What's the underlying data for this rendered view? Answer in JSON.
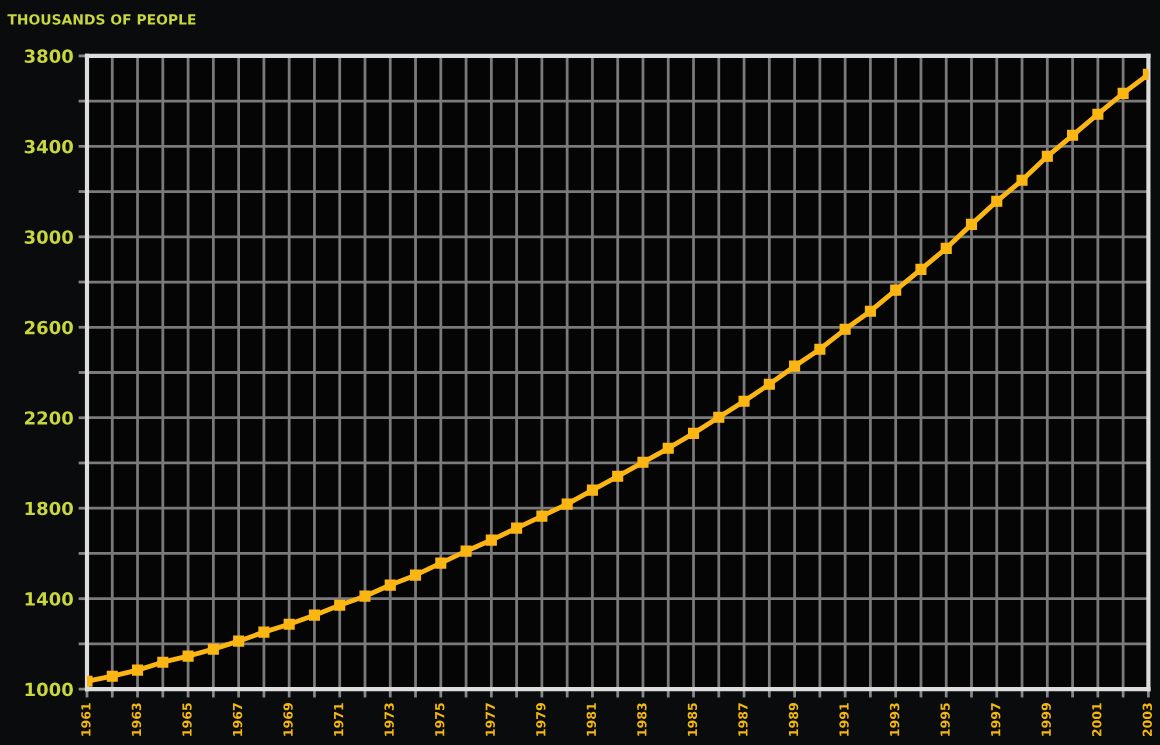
{
  "chart_data": {
    "type": "line",
    "ylabel": "THOUSANDS OF PEOPLE",
    "x": [
      1961,
      1962,
      1963,
      1964,
      1965,
      1966,
      1967,
      1968,
      1969,
      1970,
      1971,
      1972,
      1973,
      1974,
      1975,
      1976,
      1977,
      1978,
      1979,
      1980,
      1981,
      1982,
      1983,
      1984,
      1985,
      1986,
      1987,
      1988,
      1989,
      1990,
      1991,
      1992,
      1993,
      1994,
      1995,
      1996,
      1997,
      1998,
      1999,
      2000,
      2001,
      2002,
      2003
    ],
    "series": [
      {
        "color": "#fbb614",
        "values": [
          1035,
          1057,
          1084,
          1119,
          1146,
          1177,
          1212,
          1252,
          1287,
          1327,
          1371,
          1411,
          1460,
          1504,
          1557,
          1610,
          1659,
          1712,
          1765,
          1818,
          1880,
          1941,
          2003,
          2065,
          2131,
          2202,
          2273,
          2348,
          2428,
          2503,
          2591,
          2671,
          2764,
          2856,
          2949,
          3055,
          3157,
          3250,
          3356,
          3449,
          3542,
          3634,
          3718
        ]
      }
    ],
    "xlim": [
      1961,
      2003
    ],
    "xticks": [
      1961,
      {
        "value": 1962,
        "label": null
      },
      1963,
      {
        "value": 1964,
        "label": null
      },
      1965,
      {
        "value": 1966,
        "label": null
      },
      1967,
      {
        "value": 1968,
        "label": null
      },
      1969,
      {
        "value": 1970,
        "label": null
      },
      1971,
      {
        "value": 1972,
        "label": null
      },
      1973,
      {
        "value": 1974,
        "label": null
      },
      1975,
      {
        "value": 1976,
        "label": null
      },
      1977,
      {
        "value": 1978,
        "label": null
      },
      1979,
      {
        "value": 1980,
        "label": null
      },
      1981,
      {
        "value": 1982,
        "label": null
      },
      1983,
      {
        "value": 1984,
        "label": null
      },
      1985,
      {
        "value": 1986,
        "label": null
      },
      1987,
      {
        "value": 1988,
        "label": null
      },
      1989,
      {
        "value": 1990,
        "label": null
      },
      1991,
      {
        "value": 1992,
        "label": null
      },
      1993,
      {
        "value": 1994,
        "label": null
      },
      1995,
      {
        "value": 1996,
        "label": null
      },
      1997,
      {
        "value": 1998,
        "label": null
      },
      1999,
      {
        "value": 2000,
        "label": null
      },
      2001,
      {
        "value": 2002,
        "label": null
      },
      2003
    ],
    "ylim": [
      1000,
      3800
    ],
    "yticks": [
      1000,
      {
        "value": 1200,
        "label": null
      },
      1400,
      {
        "value": 1600,
        "label": null
      },
      1800,
      {
        "value": 2000,
        "label": null
      },
      2200,
      {
        "value": 2400,
        "label": null
      },
      2600,
      {
        "value": 2800,
        "label": null
      },
      3000,
      {
        "value": 3200,
        "label": null
      },
      3400,
      {
        "value": 3600,
        "label": null
      },
      3800
    ],
    "grid": true,
    "marker": "square",
    "line_style": "solid",
    "legend": false
  }
}
